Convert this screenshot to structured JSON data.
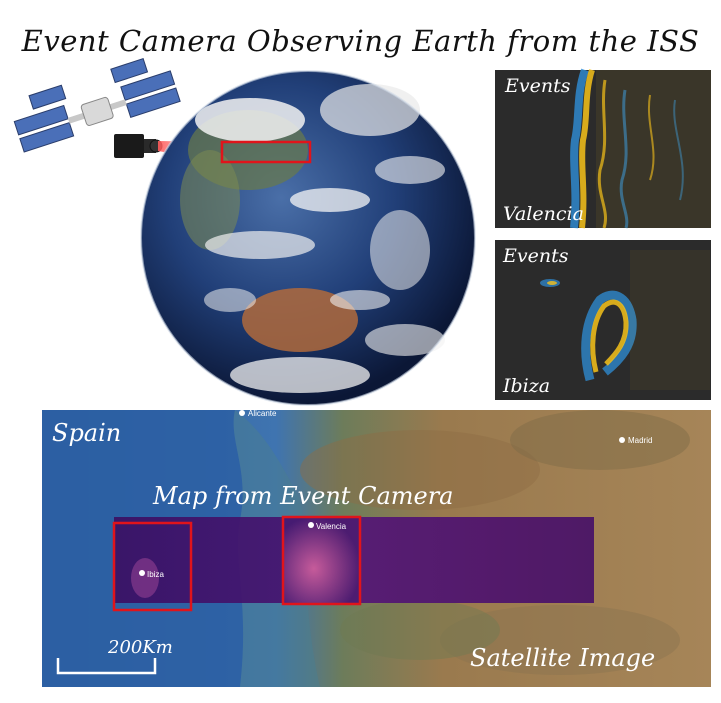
{
  "title": "Event Camera Observing Earth from the ISS",
  "event_panels": [
    {
      "header": "Events",
      "location": "Valencia"
    },
    {
      "header": "Events",
      "location": "Ibiza"
    }
  ],
  "map": {
    "region_label": "Spain",
    "overlay_label": "Map from Event Camera",
    "source_label": "Satellite Image",
    "scale_label": "200Km",
    "cities": {
      "alicante": "Alicante",
      "madrid": "Madrid",
      "valencia": "Valencia",
      "ibiza": "Ibiza"
    }
  },
  "colors": {
    "highlight": "#e0141b",
    "event_positive": "#f6c21a",
    "event_negative": "#2f8fd8",
    "event_background": "#2b2b2b",
    "overlay": "#3a0a60"
  }
}
